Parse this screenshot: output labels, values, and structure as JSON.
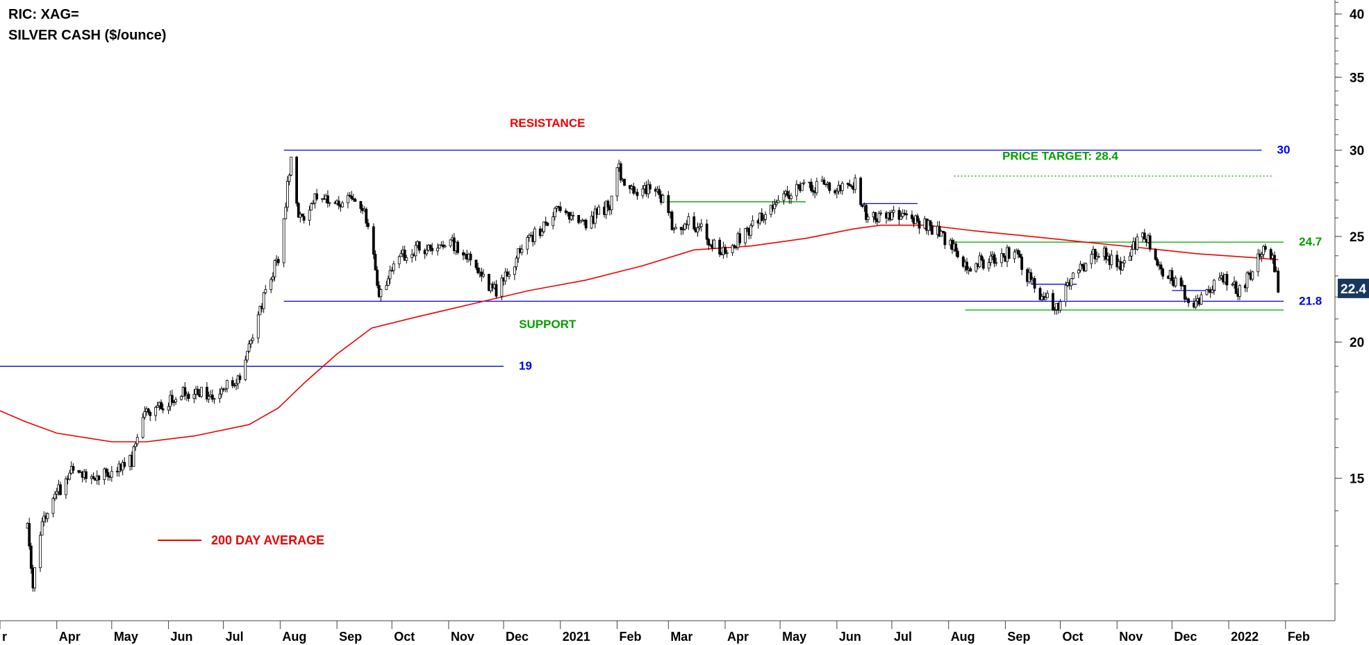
{
  "header": {
    "ric": "RIC: XAG=",
    "instrument": "SILVER CASH ($/ounce)"
  },
  "chart_data": {
    "type": "candlestick",
    "yscale": "log",
    "ylim": [
      11.1,
      41.2
    ],
    "y_ticks": [
      15,
      20,
      25,
      30,
      35,
      40
    ],
    "last_price": 22.4,
    "x_labels": [
      "Mar",
      "Apr",
      "May",
      "Jun",
      "Jul",
      "Aug",
      "Sep",
      "Oct",
      "Nov",
      "Dec",
      "2021",
      "Feb",
      "Mar",
      "Apr",
      "May",
      "Jun",
      "Jul",
      "Aug",
      "Sep",
      "Oct",
      "Nov",
      "Dec",
      "2022",
      "Feb"
    ],
    "x_label_visible": [
      "r",
      "Apr",
      "May",
      "Jun",
      "Jul",
      "Aug",
      "Sep",
      "Oct",
      "Nov",
      "Dec",
      "2021",
      "Feb",
      "Mar",
      "Apr",
      "May",
      "Jun",
      "Jul",
      "Aug",
      "Sep",
      "Oct",
      "Nov",
      "Dec",
      "2022",
      "Feb"
    ],
    "x_dates": [
      "2020-03-01",
      "2020-04-01",
      "2020-05-01",
      "2020-06-01",
      "2020-07-01",
      "2020-08-01",
      "2020-09-01",
      "2020-10-01",
      "2020-11-01",
      "2020-12-01",
      "2021-01-01",
      "2021-02-01",
      "2021-03-01",
      "2021-04-01",
      "2021-05-01",
      "2021-06-01",
      "2021-07-01",
      "2021-08-01",
      "2021-09-01",
      "2021-10-01",
      "2021-11-01",
      "2021-12-01",
      "2022-01-01",
      "2022-02-01"
    ],
    "x_range": [
      "2020-03-01",
      "2022-02-28"
    ],
    "close_path": [
      [
        "2020-03-16",
        13.5
      ],
      [
        "2020-03-19",
        12.0
      ],
      [
        "2020-03-25",
        13.8
      ],
      [
        "2020-04-09",
        15.3
      ],
      [
        "2020-04-22",
        15.0
      ],
      [
        "2020-05-12",
        15.6
      ],
      [
        "2020-05-19",
        17.2
      ],
      [
        "2020-06-09",
        18.0
      ],
      [
        "2020-06-26",
        17.9
      ],
      [
        "2020-07-10",
        18.6
      ],
      [
        "2020-07-21",
        21.5
      ],
      [
        "2020-07-31",
        24.0
      ],
      [
        "2020-08-07",
        29.2
      ],
      [
        "2020-08-11",
        25.8
      ],
      [
        "2020-08-20",
        27.0
      ],
      [
        "2020-09-04",
        27.0
      ],
      [
        "2020-09-15",
        26.8
      ],
      [
        "2020-09-24",
        22.3
      ],
      [
        "2020-10-07",
        24.0
      ],
      [
        "2020-10-15",
        24.4
      ],
      [
        "2020-11-04",
        24.6
      ],
      [
        "2020-11-27",
        22.2
      ],
      [
        "2020-12-10",
        24.2
      ],
      [
        "2020-12-31",
        26.4
      ],
      [
        "2021-01-13",
        25.6
      ],
      [
        "2021-01-29",
        26.9
      ],
      [
        "2021-02-01",
        29.0
      ],
      [
        "2021-02-08",
        27.4
      ],
      [
        "2021-02-22",
        27.9
      ],
      [
        "2021-03-05",
        25.2
      ],
      [
        "2021-03-12",
        26.0
      ],
      [
        "2021-03-31",
        24.1
      ],
      [
        "2021-04-20",
        26.0
      ],
      [
        "2021-05-07",
        27.5
      ],
      [
        "2021-05-25",
        27.9
      ],
      [
        "2021-06-04",
        27.6
      ],
      [
        "2021-06-11",
        28.0
      ],
      [
        "2021-06-18",
        26.0
      ],
      [
        "2021-07-06",
        26.3
      ],
      [
        "2021-07-22",
        25.5
      ],
      [
        "2021-08-06",
        24.3
      ],
      [
        "2021-08-09",
        23.4
      ],
      [
        "2021-08-27",
        23.9
      ],
      [
        "2021-09-06",
        24.2
      ],
      [
        "2021-09-17",
        22.4
      ],
      [
        "2021-09-29",
        21.5
      ],
      [
        "2021-10-05",
        22.6
      ],
      [
        "2021-10-22",
        24.3
      ],
      [
        "2021-11-03",
        23.4
      ],
      [
        "2021-11-16",
        25.2
      ],
      [
        "2021-11-26",
        23.3
      ],
      [
        "2021-12-08",
        22.2
      ],
      [
        "2021-12-15",
        21.6
      ],
      [
        "2021-12-28",
        22.9
      ],
      [
        "2022-01-07",
        22.3
      ],
      [
        "2022-01-13",
        23.1
      ],
      [
        "2022-01-20",
        24.6
      ],
      [
        "2022-01-26",
        23.5
      ],
      [
        "2022-01-28",
        22.4
      ]
    ],
    "ma200": {
      "name": "200 DAY AVERAGE",
      "points": [
        [
          "2020-03-01",
          17.3
        ],
        [
          "2020-03-15",
          16.9
        ],
        [
          "2020-04-01",
          16.5
        ],
        [
          "2020-05-01",
          16.2
        ],
        [
          "2020-05-20",
          16.2
        ],
        [
          "2020-06-15",
          16.4
        ],
        [
          "2020-07-15",
          16.8
        ],
        [
          "2020-07-31",
          17.4
        ],
        [
          "2020-08-15",
          18.4
        ],
        [
          "2020-09-01",
          19.5
        ],
        [
          "2020-09-20",
          20.6
        ],
        [
          "2020-10-15",
          21.1
        ],
        [
          "2020-11-15",
          21.7
        ],
        [
          "2020-12-15",
          22.3
        ],
        [
          "2021-01-15",
          22.8
        ],
        [
          "2021-02-15",
          23.5
        ],
        [
          "2021-03-15",
          24.3
        ],
        [
          "2021-04-15",
          24.5
        ],
        [
          "2021-05-15",
          24.9
        ],
        [
          "2021-06-10",
          25.4
        ],
        [
          "2021-06-25",
          25.6
        ],
        [
          "2021-07-20",
          25.6
        ],
        [
          "2021-08-15",
          25.3
        ],
        [
          "2021-09-15",
          25.0
        ],
        [
          "2021-10-15",
          24.7
        ],
        [
          "2021-11-15",
          24.4
        ],
        [
          "2021-12-15",
          24.1
        ],
        [
          "2022-01-15",
          23.9
        ],
        [
          "2022-01-28",
          23.8
        ]
      ]
    },
    "levels": [
      {
        "label": "30",
        "value": 30,
        "color": "#0000ee",
        "from": "2020-08-03",
        "to": "2022-01-19",
        "dashed": false
      },
      {
        "label": "21.8",
        "value": 21.8,
        "color": "#0000ee",
        "from": "2020-08-03",
        "to": "2022-01-31",
        "dashed": false
      },
      {
        "label": "19",
        "value": 19,
        "color": "#0000ee",
        "from": "2020-03-01",
        "to": "2020-12-01",
        "dashed": false
      },
      {
        "label": "24.7",
        "value": 24.7,
        "color": "#00a000",
        "from": "2021-08-02",
        "to": "2022-01-31",
        "dashed": false
      },
      {
        "label": "",
        "value": 21.4,
        "color": "#00a000",
        "from": "2021-08-10",
        "to": "2022-01-31",
        "dashed": false
      },
      {
        "label": "",
        "value": 28.4,
        "color": "#00a000",
        "from": "2021-08-04",
        "to": "2022-01-25",
        "dashed": true
      },
      {
        "label": "",
        "value": 26.9,
        "color": "#00a000",
        "from": "2021-02-28",
        "to": "2021-05-15",
        "dashed": false
      },
      {
        "label": "",
        "value": 26.8,
        "color": "#0000ee",
        "from": "2021-06-15",
        "to": "2021-07-15",
        "dashed": false
      },
      {
        "label": "",
        "value": 22.6,
        "color": "#0000ee",
        "from": "2021-09-15",
        "to": "2021-10-10",
        "dashed": false
      },
      {
        "label": "",
        "value": 22.3,
        "color": "#0000ee",
        "from": "2021-12-01",
        "to": "2021-12-25",
        "dashed": false
      }
    ],
    "annotations": [
      {
        "text": "RESISTANCE",
        "color": "#ee0000",
        "anchor_date": "2020-12-25",
        "anchor_value": 31.5
      },
      {
        "text": "PRICE TARGET: 28.4",
        "color": "#00a000",
        "anchor_date": "2021-10-01",
        "anchor_value": 29.4
      },
      {
        "text": "SUPPORT",
        "color": "#00a000",
        "anchor_date": "2020-12-25",
        "anchor_value": 20.6
      }
    ],
    "legend": [
      {
        "name": "200 DAY AVERAGE",
        "color": "#ee0000"
      }
    ],
    "legend_placement": "bottom-left",
    "grid": false
  }
}
